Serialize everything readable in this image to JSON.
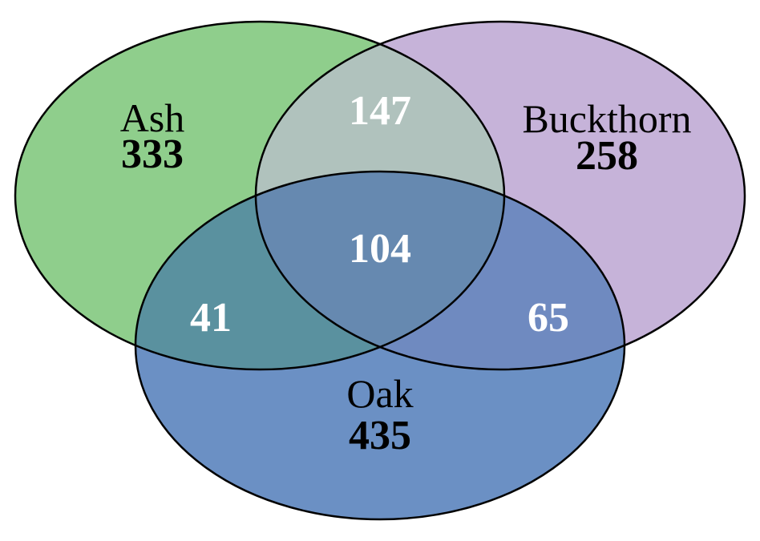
{
  "sets": [
    {
      "key": "ash",
      "name": "Ash",
      "unique_count": "333",
      "color": "#8fce8c"
    },
    {
      "key": "buckthorn",
      "name": "Buckthorn",
      "unique_count": "258",
      "color": "#c6b3d9"
    },
    {
      "key": "oak",
      "name": "Oak",
      "unique_count": "435",
      "color": "#6b90c4"
    }
  ],
  "overlaps": {
    "ash_buckthorn": "147",
    "ash_oak": "41",
    "buckthorn_oak": "65",
    "all_three": "104"
  },
  "colors": {
    "ash_buckthorn": "#b0c2bd",
    "ash_oak": "#5a919f",
    "buckthorn_oak": "#6f8ac0",
    "all_three": "#6689b0",
    "outline": "#000000"
  }
}
